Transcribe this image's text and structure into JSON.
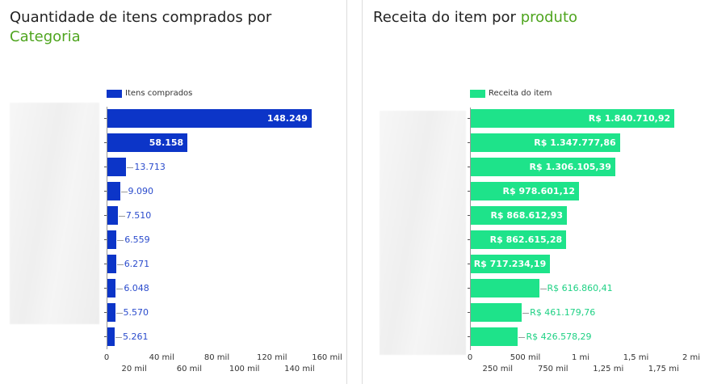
{
  "left_panel": {
    "title_main": "Quantidade de itens comprados por",
    "title_accent": "Categoria",
    "legend_label": "Itens comprados",
    "bar_color": "#0c35c8",
    "accent_color": "#4fa51f"
  },
  "right_panel": {
    "title_main": "Receita do item por",
    "title_accent": "produto",
    "legend_label": "Receita do item",
    "bar_color": "#1ee38a",
    "accent_color": "#4fa51f"
  },
  "chart_data": [
    {
      "type": "bar",
      "orientation": "horizontal",
      "title": "Quantidade de itens comprados por Categoria",
      "legend": [
        "Itens comprados"
      ],
      "legend_position": "top",
      "categories": [
        "(blurred)",
        "(blurred)",
        "(blurred)",
        "(blurred)",
        "(blurred)",
        "(blurred)",
        "(blurred)",
        "(blurred)",
        "(blurred)",
        "(blurred)"
      ],
      "values": [
        148249,
        58158,
        13713,
        9090,
        7510,
        6559,
        6271,
        6048,
        5570,
        5261
      ],
      "value_labels": [
        "148.249",
        "58.158",
        "13.713",
        "9.090",
        "7.510",
        "6.559",
        "6.271",
        "6.048",
        "5.570",
        "5.261"
      ],
      "xlim": [
        0,
        160000
      ],
      "x_ticks": [
        0,
        20000,
        40000,
        60000,
        80000,
        100000,
        120000,
        140000,
        160000
      ],
      "x_tick_labels": [
        "0",
        "20 mil",
        "40 mil",
        "60 mil",
        "80 mil",
        "100 mil",
        "120 mil",
        "140 mil",
        "160 mil"
      ],
      "grid": false,
      "xlabel": "",
      "ylabel": ""
    },
    {
      "type": "bar",
      "orientation": "horizontal",
      "title": "Receita do item por produto",
      "legend": [
        "Receita do item"
      ],
      "legend_position": "top",
      "categories": [
        "(blurred)",
        "(blurred)",
        "(blurred)",
        "(blurred)",
        "(blurred)",
        "(blurred)",
        "(blurred)",
        "(blurred)",
        "(blurred)",
        "(blurred)"
      ],
      "values": [
        1840710.92,
        1347777.86,
        1306105.39,
        978601.12,
        868612.93,
        862615.28,
        717234.19,
        616860.41,
        461179.76,
        426578.29
      ],
      "value_labels": [
        "R$ 1.840.710,92",
        "R$ 1.347.777,86",
        "R$ 1.306.105,39",
        "R$ 978.601,12",
        "R$ 868.612,93",
        "R$ 862.615,28",
        "R$ 717.234,19",
        "R$ 616.860,41",
        "R$ 461.179,76",
        "R$ 426.578,29"
      ],
      "xlim": [
        0,
        2000000
      ],
      "x_ticks": [
        0,
        250000,
        500000,
        750000,
        1000000,
        1250000,
        1500000,
        1750000,
        2000000
      ],
      "x_tick_labels": [
        "0",
        "250 mil",
        "500 mil",
        "750 mil",
        "1 mi",
        "1,25 mi",
        "1,5 mi",
        "1,75 mi",
        "2 mi"
      ],
      "grid": false,
      "xlabel": "",
      "ylabel": ""
    }
  ]
}
